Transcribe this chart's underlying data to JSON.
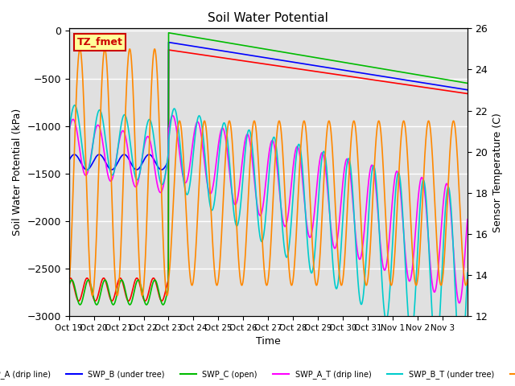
{
  "title": "Soil Water Potential",
  "ylabel_left": "Soil Water Potential (kPa)",
  "ylabel_right": "Sensor Temperature (C)",
  "xlabel": "Time",
  "ylim_left": [
    -3000,
    26
  ],
  "ylim_right": [
    12,
    26
  ],
  "background_color": "#e0e0e0",
  "figure_bg": "#ffffff",
  "xtick_labels": [
    "Oct 19",
    "Oct 20",
    "Oct 21",
    "Oct 22",
    "Oct 23",
    "Oct 24",
    "Oct 25",
    "Oct 26",
    "Oct 27",
    "Oct 28",
    "Oct 29",
    "Oct 30",
    "Oct 31",
    "Nov 1",
    "Nov 2",
    "Nov 3"
  ],
  "annotation_text": "TZ_fmet",
  "annotation_color": "#cc0000",
  "annotation_bg": "#ffff99",
  "colors": {
    "SWP_A": "#ff0000",
    "SWP_B": "#0000ff",
    "SWP_C": "#00bb00",
    "SWP_A_T": "#ff00ff",
    "SWP_B_T": "#00cccc",
    "SWP_C_T": "#ff8800"
  },
  "t_split": 4.0,
  "n_days": 16,
  "n_points": 1600
}
